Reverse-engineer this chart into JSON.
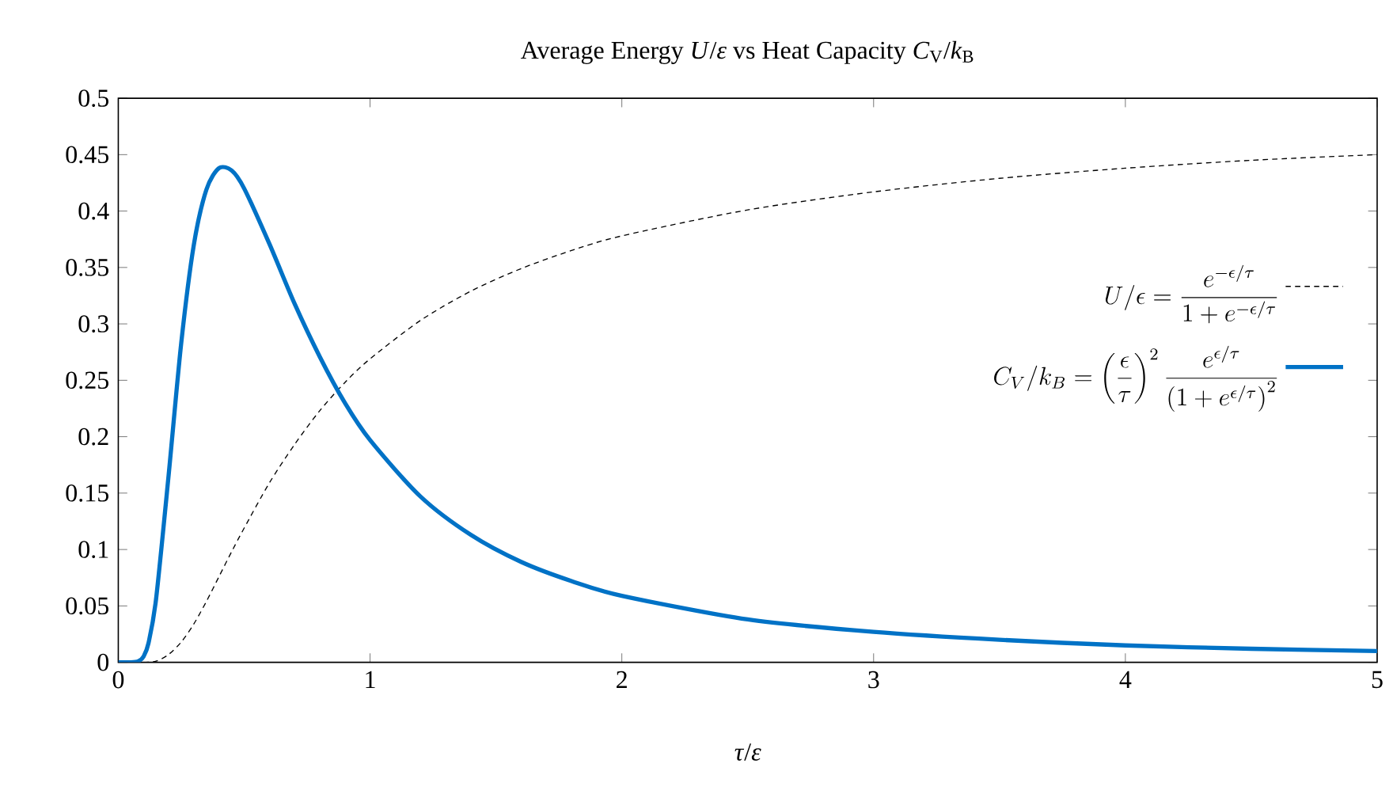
{
  "chart_data": {
    "type": "line",
    "title": "Average Energy *U*/*ε* vs Heat Capacity *C*$_{V}$/*k*$_{B}$",
    "xlabel": "*τ*/*ε*",
    "xlim": [
      0,
      5
    ],
    "xticks": [
      0,
      1,
      2,
      3,
      4,
      5
    ],
    "ylim": [
      0,
      0.5
    ],
    "yticks": [
      0,
      0.05,
      0.1,
      0.15,
      0.2,
      0.25,
      0.3,
      0.35,
      0.4,
      0.45,
      0.5
    ],
    "legend": "right",
    "grid": false,
    "marker": "none",
    "series": [
      {
        "name": "U/\\epsilon = \\frac{e^{-\\epsilon/\\tau}}{1+e^{-\\epsilon/\\tau}}",
        "color": "#000000",
        "line_style": "dashed",
        "x": [
          0.1,
          0.15,
          0.2,
          0.25,
          0.3,
          0.35,
          0.4,
          0.45,
          0.5,
          0.6,
          0.7,
          0.8,
          0.9,
          1,
          1.2,
          1.4,
          1.6,
          1.8,
          2,
          2.5,
          3,
          3.5,
          4,
          4.5,
          5
        ],
        "values": [
          0.0,
          0.001,
          0.007,
          0.018,
          0.034,
          0.054,
          0.076,
          0.098,
          0.119,
          0.159,
          0.193,
          0.223,
          0.248,
          0.269,
          0.303,
          0.329,
          0.349,
          0.365,
          0.378,
          0.401,
          0.417,
          0.429,
          0.438,
          0.445,
          0.45
        ]
      },
      {
        "name": "C_V/k_B = \\left(\\frac{\\epsilon}{\\tau}\\right)^2 \\frac{e^{\\epsilon/\\tau}}{\\left(1+e^{\\epsilon/\\tau}\\right)^2}",
        "color": "#0072c6",
        "line_style": "solid",
        "x": [
          0,
          0.05,
          0.08,
          0.1,
          0.12,
          0.15,
          0.2,
          0.25,
          0.3,
          0.35,
          0.4,
          0.45,
          0.5,
          0.6,
          0.7,
          0.8,
          0.9,
          1,
          1.2,
          1.4,
          1.6,
          1.8,
          2,
          2.5,
          3,
          3.5,
          4,
          4.5,
          5
        ],
        "values": [
          0,
          0.0,
          0.001,
          0.005,
          0.017,
          0.056,
          0.166,
          0.283,
          0.37,
          0.419,
          0.438,
          0.436,
          0.42,
          0.371,
          0.318,
          0.271,
          0.23,
          0.197,
          0.147,
          0.113,
          0.089,
          0.072,
          0.059,
          0.038,
          0.027,
          0.02,
          0.015,
          0.012,
          0.01
        ]
      }
    ]
  }
}
